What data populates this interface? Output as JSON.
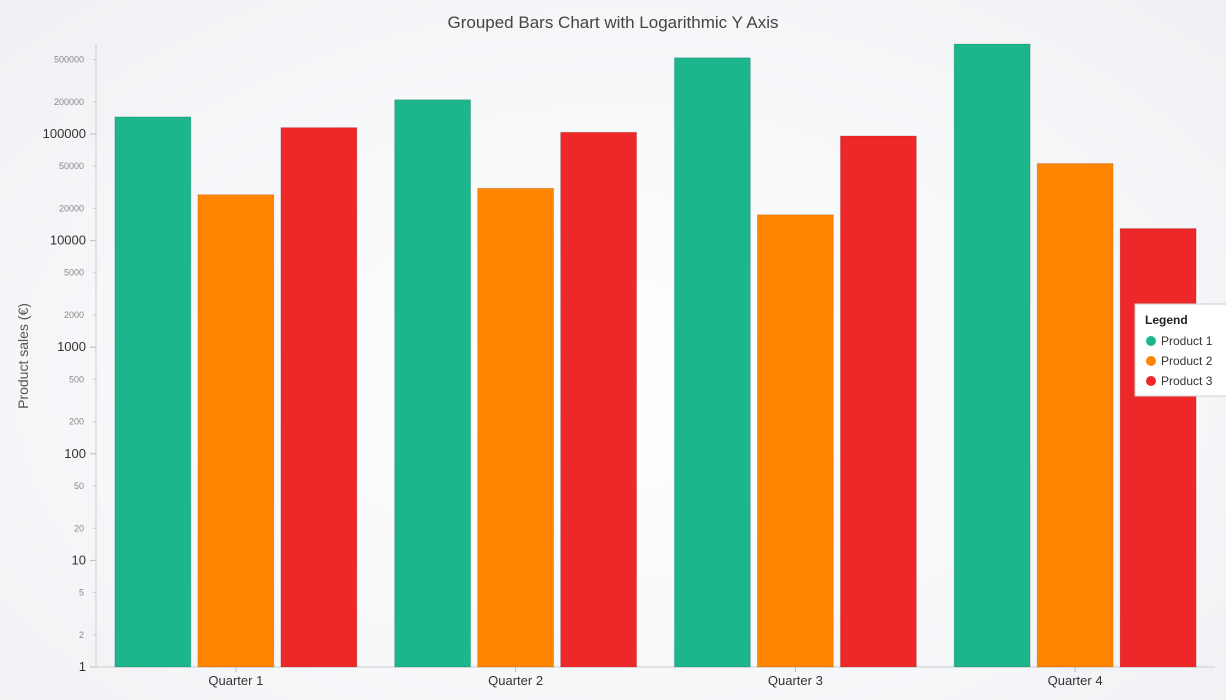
{
  "chart_data": {
    "type": "bar",
    "title": "Grouped Bars Chart with Logarithmic Y Axis",
    "ylabel": "Product sales (€)",
    "xlabel": "",
    "yscale": "log",
    "ylim": [
      1,
      700000
    ],
    "categories": [
      "Quarter 1",
      "Quarter 2",
      "Quarter 3",
      "Quarter 4"
    ],
    "series": [
      {
        "name": "Product 1",
        "color": "#1db58b",
        "values": [
          145000,
          210000,
          520000,
          700000
        ]
      },
      {
        "name": "Product 2",
        "color": "#ff8500",
        "values": [
          27000,
          31000,
          17500,
          53000
        ]
      },
      {
        "name": "Product 3",
        "color": "#ee2828",
        "values": [
          115000,
          104000,
          96000,
          13000
        ]
      }
    ],
    "y_ticks_major": [
      "1",
      "10",
      "100",
      "1000",
      "10000",
      "100000"
    ],
    "y_ticks_minor": [
      "2",
      "5",
      "20",
      "50",
      "200",
      "500",
      "2000",
      "5000",
      "20000",
      "50000",
      "200000",
      "500000"
    ],
    "legend": {
      "title": "Legend",
      "position": "right"
    },
    "grid": false
  }
}
